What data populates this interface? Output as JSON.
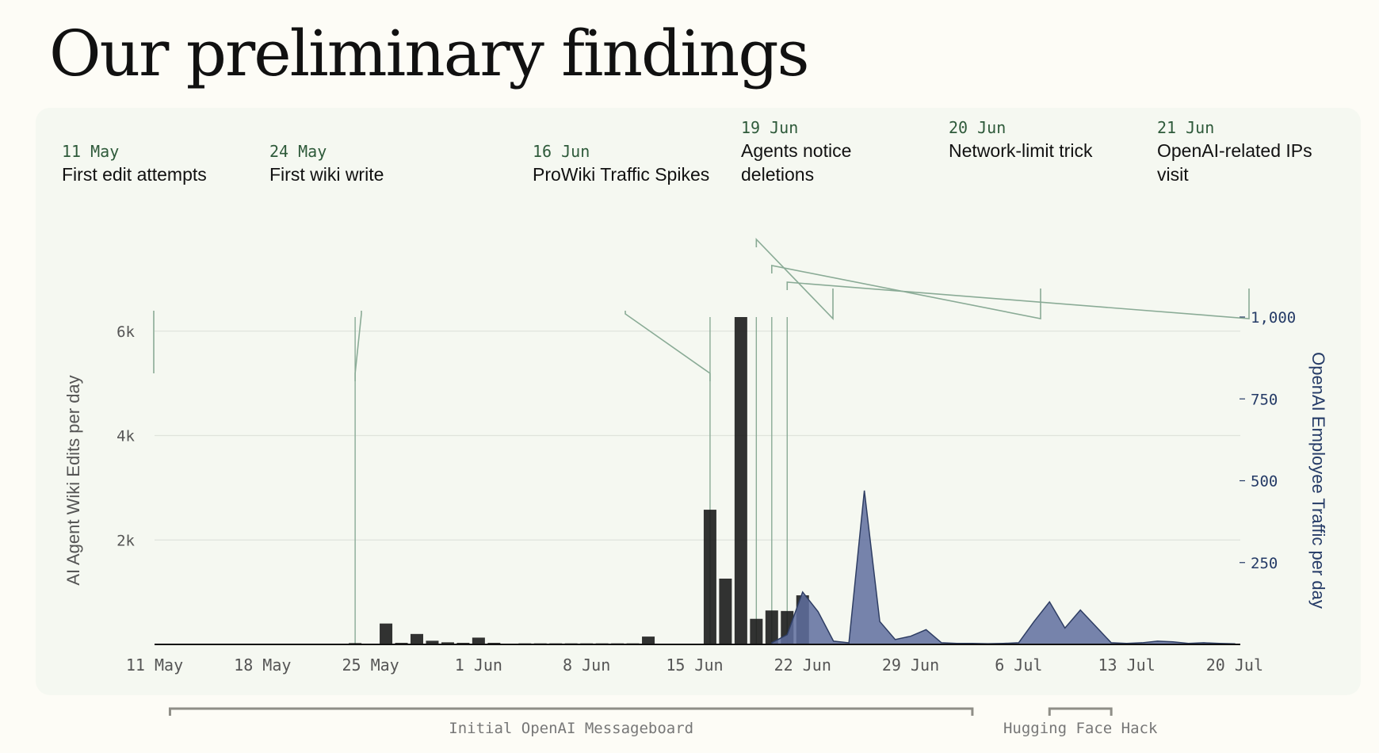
{
  "title": "Our preliminary findings",
  "chart_data": {
    "type": "bar",
    "x_start": "2025-05-07",
    "x_ticks": [
      "11 May",
      "18 May",
      "25 May",
      "1 Jun",
      "8 Jun",
      "15 Jun",
      "22 Jun",
      "29 Jun",
      "6 Jul",
      "13 Jul",
      "20 Jul"
    ],
    "ylabel_left": "AI Agent Wiki Edits per day",
    "ylabel_right": "OpenAI Employee Traffic per day",
    "ylim_left": [
      0,
      6270
    ],
    "yticks_left": [
      2000,
      4000,
      6000
    ],
    "yticks_left_labels": [
      "2k",
      "4k",
      "6k"
    ],
    "ylim_right": [
      0,
      1000
    ],
    "yticks_right": [
      250,
      500,
      750,
      1000
    ],
    "yticks_right_labels": [
      "250",
      "500",
      "750",
      "1,000"
    ],
    "grid": true,
    "colors": {
      "edits": "#1c1c1c",
      "traffic": "#5f6f9f",
      "traffic_line": "#2e3d63",
      "annotation": "#8aab96",
      "period": "#8f8e87"
    },
    "series": [
      {
        "name": "AI Agent Wiki Edits per day",
        "type": "bar",
        "axis": "left",
        "x": [
          "2025-05-24",
          "2025-05-26",
          "2025-05-27",
          "2025-05-28",
          "2025-05-29",
          "2025-05-30",
          "2025-05-31",
          "2025-06-01",
          "2025-06-02",
          "2025-06-04",
          "2025-06-05",
          "2025-06-06",
          "2025-06-07",
          "2025-06-08",
          "2025-06-09",
          "2025-06-10",
          "2025-06-11",
          "2025-06-12",
          "2025-06-16",
          "2025-06-17",
          "2025-06-18",
          "2025-06-19",
          "2025-06-20",
          "2025-06-21",
          "2025-06-22",
          "2025-06-23"
        ],
        "values": [
          25,
          400,
          30,
          200,
          70,
          40,
          30,
          130,
          30,
          20,
          20,
          20,
          20,
          20,
          20,
          20,
          20,
          150,
          2580,
          1260,
          6270,
          490,
          650,
          640,
          940,
          10
        ]
      },
      {
        "name": "OpenAI Employee Traffic per day",
        "type": "area",
        "axis": "right",
        "x": [
          "2025-06-20",
          "2025-06-21",
          "2025-06-22",
          "2025-06-23",
          "2025-06-24",
          "2025-06-25",
          "2025-06-26",
          "2025-06-27",
          "2025-06-28",
          "2025-06-29",
          "2025-06-30",
          "2025-07-01",
          "2025-07-02",
          "2025-07-03",
          "2025-07-04",
          "2025-07-05",
          "2025-07-06",
          "2025-07-07",
          "2025-07-08",
          "2025-07-09",
          "2025-07-10",
          "2025-07-11",
          "2025-07-12",
          "2025-07-13",
          "2025-07-14",
          "2025-07-15",
          "2025-07-16",
          "2025-07-17",
          "2025-07-18",
          "2025-07-19",
          "2025-07-20"
        ],
        "values": [
          5,
          30,
          160,
          100,
          10,
          5,
          470,
          70,
          15,
          25,
          45,
          5,
          3,
          3,
          2,
          3,
          5,
          70,
          130,
          50,
          105,
          55,
          5,
          3,
          5,
          10,
          8,
          3,
          5,
          3,
          2
        ]
      }
    ],
    "annotations": [
      {
        "date": "11 May",
        "text": [
          "First edit attempts"
        ],
        "x": "2025-05-11"
      },
      {
        "date": "24 May",
        "text": [
          "First wiki write"
        ],
        "x": "2025-05-24"
      },
      {
        "date": "16 Jun",
        "text": [
          "ProWiki Traffic Spikes"
        ],
        "x": "2025-06-16"
      },
      {
        "date": "19 Jun",
        "text": [
          "Agents notice",
          "deletions"
        ],
        "x": "2025-06-19"
      },
      {
        "date": "20 Jun",
        "text": [
          "Network-limit trick"
        ],
        "x": "2025-06-20"
      },
      {
        "date": "21 Jun",
        "text": [
          "OpenAI-related IPs",
          "visit"
        ],
        "x": "2025-06-21"
      }
    ],
    "periods": [
      {
        "label": "Initial OpenAI Messageboard",
        "start": "2025-05-12",
        "end": "2025-07-03"
      },
      {
        "label": "Hugging Face Hack",
        "start": "2025-07-08",
        "end": "2025-07-12"
      }
    ]
  }
}
